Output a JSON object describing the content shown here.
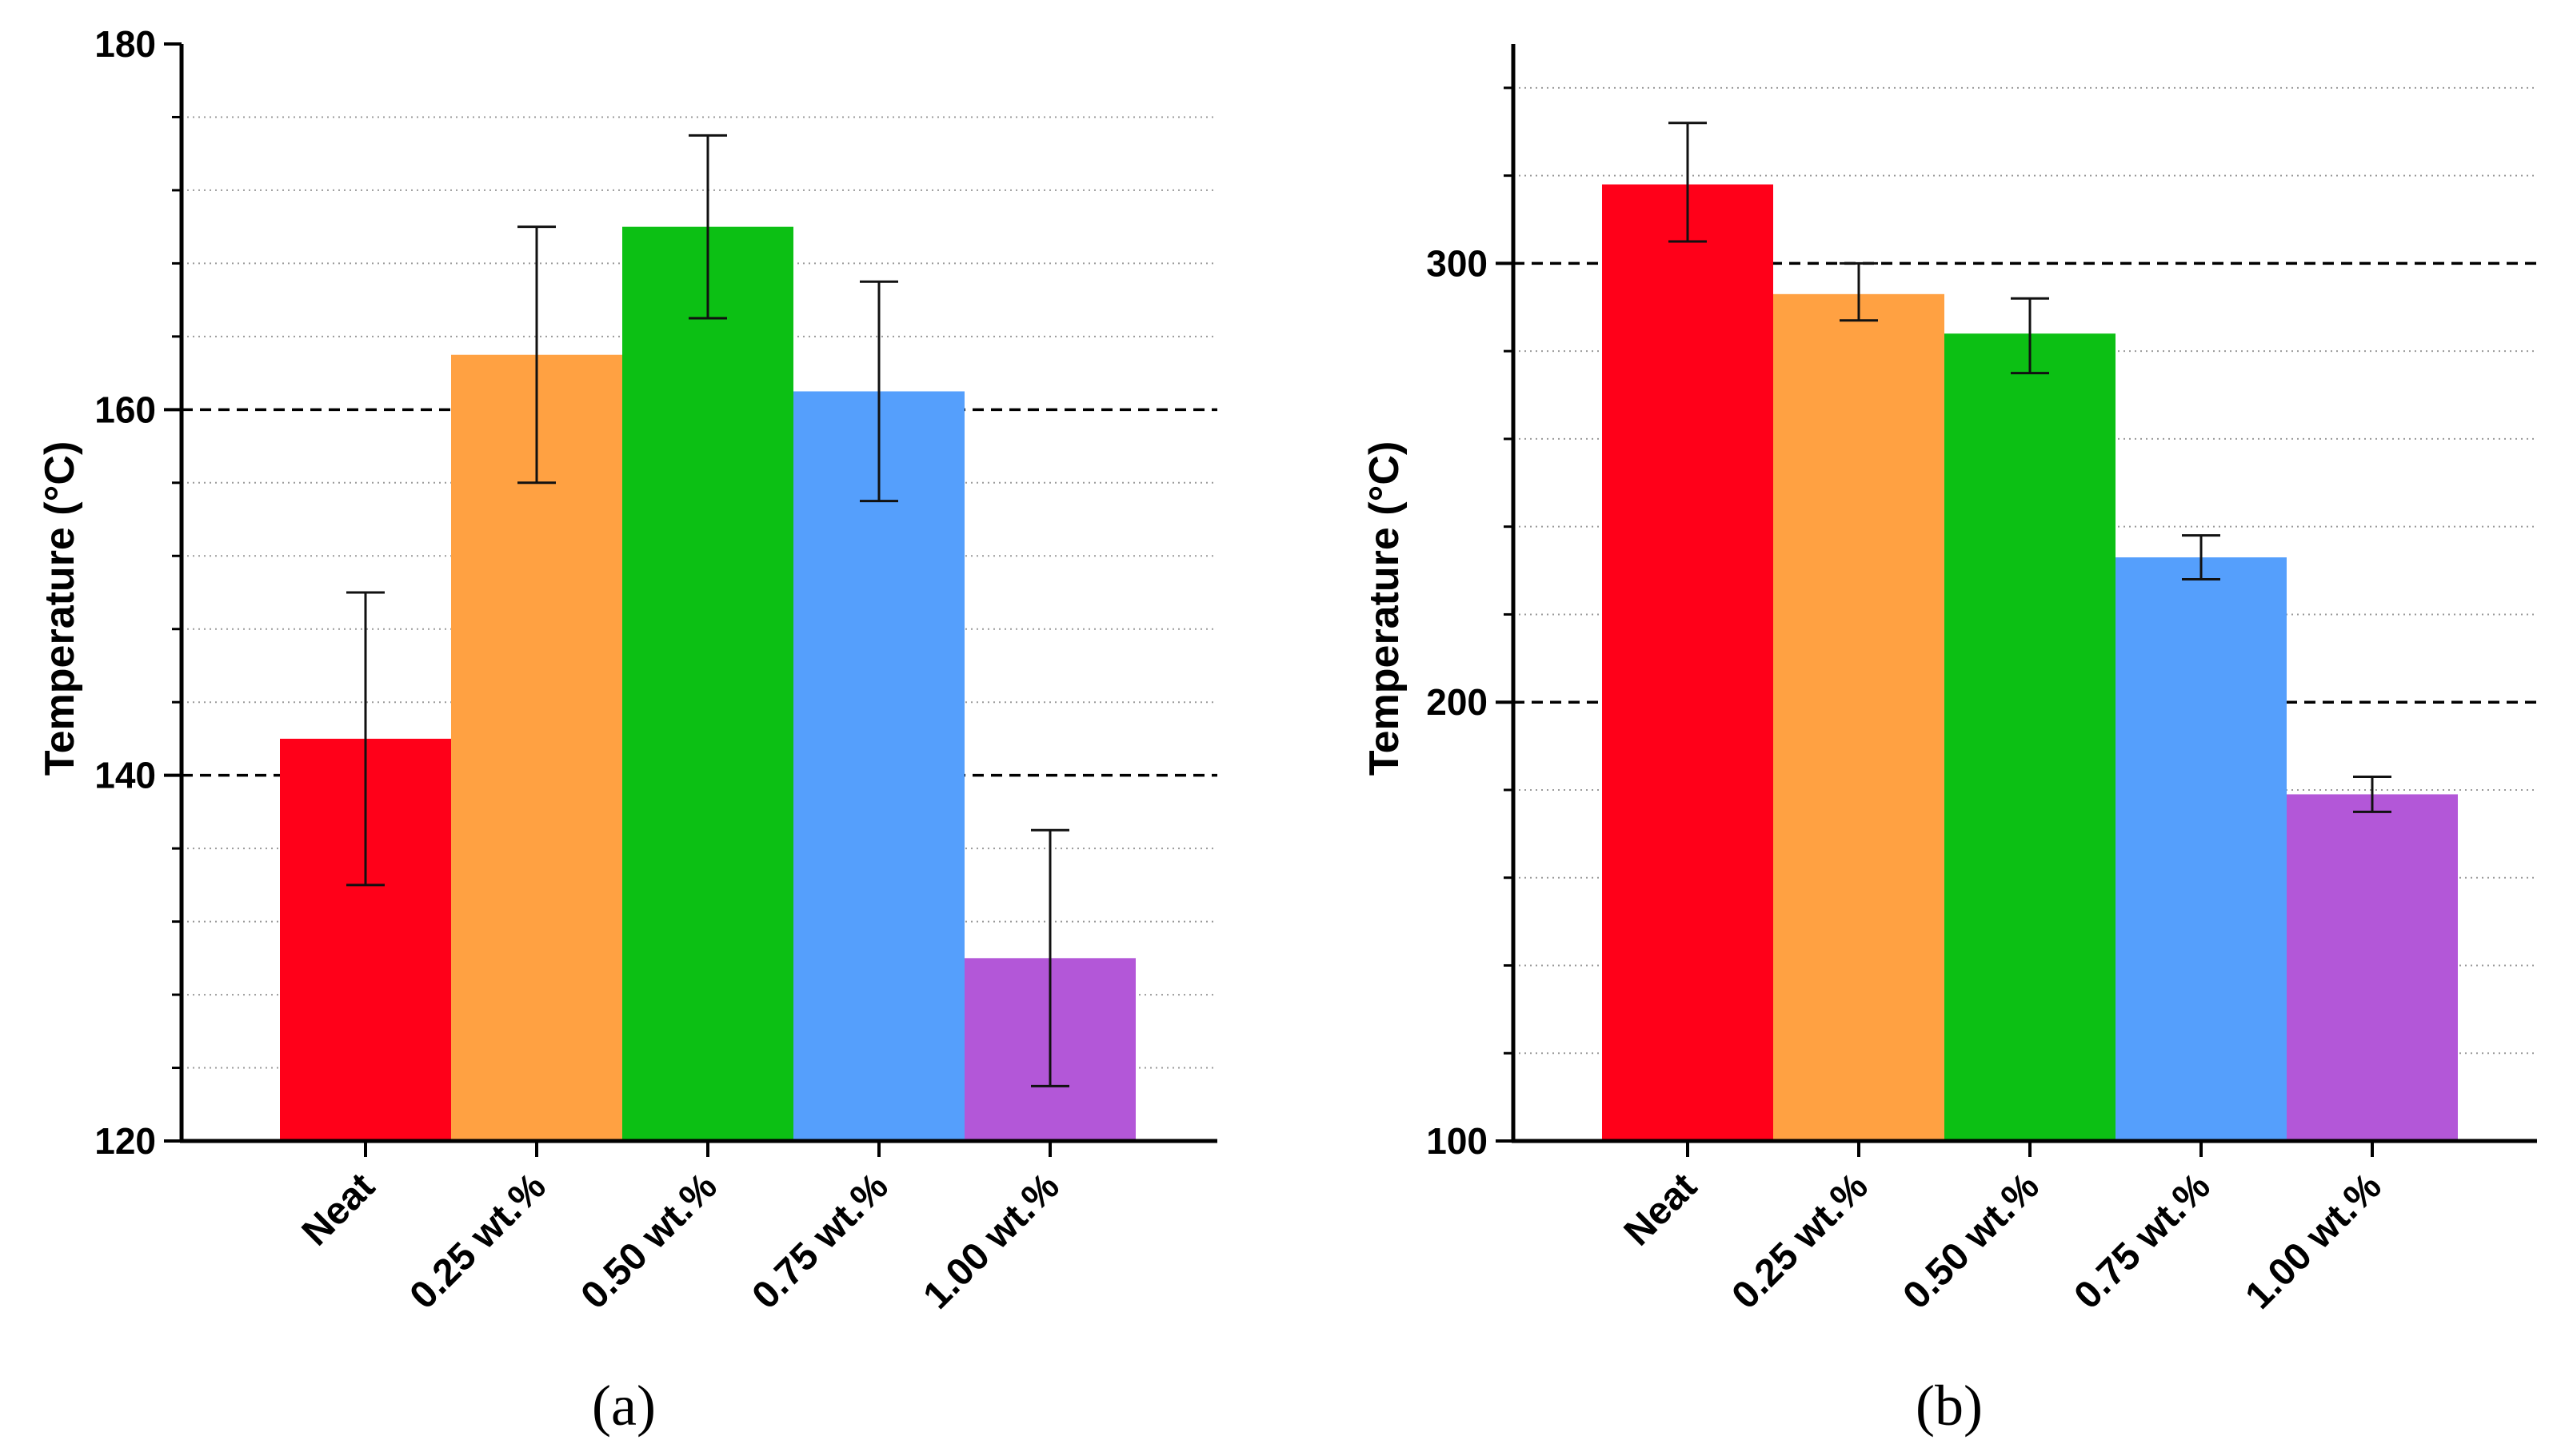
{
  "chart_data": [
    {
      "type": "bar",
      "panel_label": "(a)",
      "categories": [
        "Neat",
        "0.25 wt.%",
        "0.50 wt.%",
        "0.75 wt.%",
        "1.00 wt.%"
      ],
      "values": [
        142,
        163,
        170,
        161,
        130
      ],
      "error_low": [
        134,
        156,
        165,
        155,
        123
      ],
      "error_high": [
        150,
        170,
        175,
        167,
        137
      ],
      "colors": [
        "#ff0019",
        "#ffa142",
        "#0cc014",
        "#559ffc",
        "#b357d8"
      ],
      "ylabel": "Temperature (°C)",
      "xlabel": "",
      "ylim": [
        120,
        180
      ],
      "major_ticks": [
        120,
        140,
        160,
        180
      ],
      "tick_labels": [
        "120",
        "140",
        "160",
        "180"
      ],
      "dashed_gridlines": [
        140,
        160
      ],
      "minor_gridlines": [
        124,
        128,
        132,
        136,
        144,
        148,
        152,
        156,
        164,
        168,
        172,
        176
      ],
      "grid": true
    },
    {
      "type": "bar",
      "panel_label": "(b)",
      "categories": [
        "Neat",
        "0.25 wt.%",
        "0.50 wt.%",
        "0.75 wt.%",
        "1.00 wt.%"
      ],
      "values": [
        318,
        293,
        284,
        233,
        179
      ],
      "error_low": [
        305,
        287,
        275,
        228,
        175
      ],
      "error_high": [
        332,
        300,
        292,
        238,
        183
      ],
      "colors": [
        "#ff0019",
        "#ffa142",
        "#0cc014",
        "#559ffc",
        "#b357d8"
      ],
      "ylabel": "Temperature (°C)",
      "xlabel": "",
      "ylim": [
        100,
        350
      ],
      "major_ticks": [
        100,
        200,
        300
      ],
      "tick_labels": [
        "100",
        "200",
        "300"
      ],
      "dashed_gridlines": [
        200,
        300
      ],
      "minor_gridlines": [
        120,
        140,
        160,
        180,
        220,
        240,
        260,
        280,
        320,
        340
      ],
      "grid": true
    }
  ]
}
